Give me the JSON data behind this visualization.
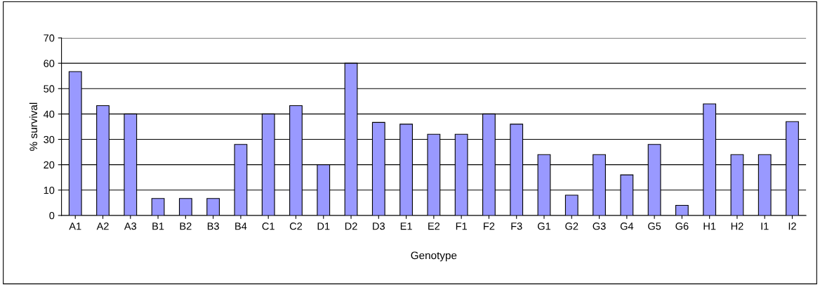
{
  "chart_data": {
    "type": "bar",
    "xlabel": "Genotype",
    "ylabel": "% survival",
    "categories": [
      "A1",
      "A2",
      "A3",
      "B1",
      "B2",
      "B3",
      "B4",
      "C1",
      "C2",
      "D1",
      "D2",
      "D3",
      "E1",
      "E2",
      "F1",
      "F2",
      "F3",
      "G1",
      "G2",
      "G3",
      "G4",
      "G5",
      "G6",
      "H1",
      "H2",
      "I1",
      "I2"
    ],
    "values": [
      56.7,
      43.3,
      40,
      6.7,
      6.7,
      6.7,
      28,
      40,
      43.3,
      20,
      60,
      36.7,
      36,
      32,
      32,
      40,
      36,
      24,
      8,
      24,
      16,
      28,
      4,
      44,
      24,
      24,
      37
    ],
    "color": "#9999ff",
    "ylim": [
      0,
      70
    ],
    "yticks": [
      0,
      10,
      20,
      30,
      40,
      50,
      60,
      70
    ],
    "grid": "y",
    "legend": false
  }
}
